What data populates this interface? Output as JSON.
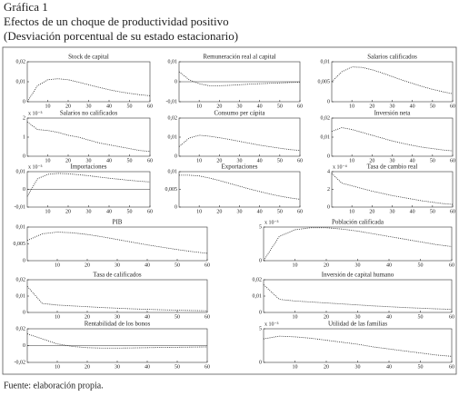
{
  "title": "Gráfica 1",
  "subtitle_lines": [
    "Efectos de un choque de productividad positivo",
    "(Desviación porcentual de su estado estacionario)"
  ],
  "source": "Fuente: elaboración propia.",
  "chart_data": [
    {
      "type": "line",
      "title": "Stock de capital",
      "x": [
        0,
        5,
        10,
        15,
        20,
        25,
        30,
        35,
        40,
        45,
        50,
        55,
        60
      ],
      "values": [
        0,
        0.008,
        0.011,
        0.0115,
        0.011,
        0.0098,
        0.0085,
        0.0072,
        0.006,
        0.005,
        0.0042,
        0.0035,
        0.003
      ],
      "xlim": [
        0,
        60
      ],
      "xticks": [
        10,
        20,
        30,
        40,
        50,
        60
      ],
      "ylim": [
        0,
        0.02
      ],
      "yticks": [
        0,
        {
          "value": 0.01,
          "label": "0,01"
        },
        {
          "value": 0.02,
          "label": "0,02"
        }
      ]
    },
    {
      "type": "line",
      "title": "Remuneración real al capital",
      "x": [
        0,
        5,
        10,
        15,
        20,
        25,
        30,
        35,
        40,
        45,
        50,
        55,
        60
      ],
      "values": [
        0.005,
        0.001,
        -0.001,
        -0.002,
        -0.002,
        -0.0018,
        -0.0015,
        -0.0012,
        -0.001,
        -0.0008,
        -0.0006,
        -0.0004,
        -0.0003
      ],
      "xlim": [
        0,
        60
      ],
      "xticks": [
        10,
        20,
        30,
        40,
        50,
        60
      ],
      "ylim": [
        -0.01,
        0.01
      ],
      "yticks": [
        {
          "value": -0.01,
          "label": "-0,01"
        },
        0,
        {
          "value": 0.01,
          "label": "0,01"
        }
      ]
    },
    {
      "type": "line",
      "title": "Salarios calificados",
      "x": [
        0,
        5,
        10,
        15,
        20,
        25,
        30,
        35,
        40,
        45,
        50,
        55,
        60
      ],
      "values": [
        0.005,
        0.0075,
        0.0087,
        0.0086,
        0.008,
        0.0072,
        0.0063,
        0.0054,
        0.0046,
        0.0038,
        0.0031,
        0.0025,
        0.002
      ],
      "xlim": [
        0,
        60
      ],
      "xticks": [
        10,
        20,
        30,
        40,
        50,
        60
      ],
      "ylim": [
        0,
        0.01
      ],
      "yticks": [
        0,
        {
          "value": 0.005,
          "label": "0,005"
        },
        {
          "value": 0.01,
          "label": "0,01"
        }
      ]
    },
    {
      "type": "line",
      "title": "Salarios no calificados",
      "exponent": "x 10⁻³",
      "x": [
        0,
        5,
        10,
        15,
        20,
        25,
        30,
        35,
        40,
        45,
        50,
        55,
        60
      ],
      "values": [
        1.8,
        1.4,
        1.35,
        1.25,
        1.1,
        1,
        0.85,
        0.7,
        0.6,
        0.5,
        0.4,
        0.3,
        0.25
      ],
      "xlim": [
        0,
        60
      ],
      "xticks": [
        10,
        20,
        30,
        40,
        50,
        60
      ],
      "ylim": [
        0,
        2
      ],
      "yticks": [
        0,
        1,
        2
      ]
    },
    {
      "type": "line",
      "title": "Consumo per cápita",
      "x": [
        0,
        5,
        10,
        15,
        20,
        25,
        30,
        35,
        40,
        45,
        50,
        55,
        60
      ],
      "values": [
        0.005,
        0.0095,
        0.011,
        0.0105,
        0.0097,
        0.0088,
        0.0078,
        0.0068,
        0.0058,
        0.005,
        0.0042,
        0.0035,
        0.003
      ],
      "xlim": [
        0,
        60
      ],
      "xticks": [
        10,
        20,
        30,
        40,
        50,
        60
      ],
      "ylim": [
        0,
        0.02
      ],
      "yticks": [
        0,
        {
          "value": 0.01,
          "label": "0,01"
        },
        {
          "value": 0.02,
          "label": "0,02"
        }
      ]
    },
    {
      "type": "line",
      "title": "Inversión neta",
      "x": [
        0,
        5,
        10,
        15,
        20,
        25,
        30,
        35,
        40,
        45,
        50,
        55,
        60
      ],
      "values": [
        0.013,
        0.015,
        0.014,
        0.0125,
        0.011,
        0.0095,
        0.008,
        0.0068,
        0.0057,
        0.0047,
        0.004,
        0.0033,
        0.0028
      ],
      "xlim": [
        0,
        60
      ],
      "xticks": [
        10,
        20,
        30,
        40,
        50,
        60
      ],
      "ylim": [
        0,
        0.02
      ],
      "yticks": [
        0,
        {
          "value": 0.01,
          "label": "0,01"
        },
        {
          "value": 0.02,
          "label": "0,02"
        }
      ]
    },
    {
      "type": "line",
      "title": "Importaciones",
      "exponent": "x 10⁻³",
      "x": [
        0,
        5,
        10,
        15,
        20,
        25,
        30,
        35,
        40,
        45,
        50,
        55,
        60
      ],
      "values": [
        -0.004,
        0.006,
        0.0085,
        0.009,
        0.0088,
        0.0083,
        0.0077,
        0.007,
        0.0063,
        0.0057,
        0.0051,
        0.0046,
        0.0042
      ],
      "xlim": [
        0,
        60
      ],
      "xticks": [
        10,
        20,
        30,
        40,
        50,
        60
      ],
      "ylim": [
        -0.01,
        0.01
      ],
      "yticks": [
        {
          "value": -0.01,
          "label": "-0,01"
        },
        0,
        {
          "value": 0.01,
          "label": "0,01"
        }
      ]
    },
    {
      "type": "line",
      "title": "Exportaciones",
      "x": [
        0,
        5,
        10,
        15,
        20,
        25,
        30,
        35,
        40,
        45,
        50,
        55,
        60
      ],
      "values": [
        0.009,
        0.009,
        0.0088,
        0.0082,
        0.0075,
        0.0067,
        0.0059,
        0.0051,
        0.0044,
        0.0037,
        0.0031,
        0.0026,
        0.0022
      ],
      "xlim": [
        0,
        60
      ],
      "xticks": [
        10,
        20,
        30,
        40,
        50,
        60
      ],
      "ylim": [
        0,
        0.01
      ],
      "yticks": [
        0,
        {
          "value": 0.005,
          "label": "0,005"
        },
        {
          "value": 0.01,
          "label": "0,01"
        }
      ]
    },
    {
      "type": "line",
      "title": "Tasa de cambio real",
      "exponent": "x 10⁻⁴",
      "x": [
        0,
        5,
        10,
        15,
        20,
        25,
        30,
        35,
        40,
        45,
        50,
        55,
        60
      ],
      "values": [
        3.8,
        2.7,
        2.4,
        2.1,
        1.8,
        1.55,
        1.3,
        1.1,
        0.9,
        0.7,
        0.55,
        0.4,
        0.3
      ],
      "xlim": [
        0,
        60
      ],
      "xticks": [
        10,
        20,
        30,
        40,
        50,
        60
      ],
      "ylim": [
        0,
        4
      ],
      "yticks": [
        0,
        2,
        4
      ]
    },
    {
      "type": "line",
      "title": "PIB",
      "x": [
        0,
        5,
        10,
        15,
        20,
        25,
        30,
        35,
        40,
        45,
        50,
        55,
        60
      ],
      "values": [
        0.006,
        0.008,
        0.0085,
        0.0083,
        0.0078,
        0.0071,
        0.0063,
        0.0055,
        0.0047,
        0.004,
        0.0033,
        0.0027,
        0.0022
      ],
      "xlim": [
        0,
        60
      ],
      "xticks": [
        10,
        20,
        30,
        40,
        50,
        60
      ],
      "ylim": [
        0,
        0.01
      ],
      "yticks": [
        0,
        {
          "value": 0.005,
          "label": "0,005"
        },
        {
          "value": 0.01,
          "label": "0,01"
        }
      ]
    },
    {
      "type": "line",
      "title": "Población calificada",
      "exponent": "x 10⁻³",
      "x": [
        0,
        5,
        10,
        15,
        20,
        25,
        30,
        35,
        40,
        45,
        50,
        55,
        60
      ],
      "values": [
        0,
        3.6,
        4.6,
        4.9,
        4.9,
        4.7,
        4.4,
        4,
        3.6,
        3.2,
        2.8,
        2.4,
        2.1
      ],
      "xlim": [
        0,
        60
      ],
      "xticks": [
        10,
        20,
        30,
        40,
        50,
        60
      ],
      "ylim": [
        0,
        5
      ],
      "yticks": [
        0,
        5
      ]
    },
    {
      "type": "line",
      "title": "Tasa de calificados",
      "x": [
        0,
        5,
        10,
        15,
        20,
        25,
        30,
        35,
        40,
        45,
        50,
        55,
        60
      ],
      "values": [
        0.016,
        0.0055,
        0.0045,
        0.004,
        0.0035,
        0.003,
        0.0026,
        0.0022,
        0.0019,
        0.0016,
        0.0014,
        0.0012,
        0.001
      ],
      "xlim": [
        0,
        60
      ],
      "xticks": [
        10,
        20,
        30,
        40,
        50,
        60
      ],
      "ylim": [
        0,
        0.02
      ],
      "yticks": [
        0,
        {
          "value": 0.01,
          "label": "0,01"
        },
        {
          "value": 0.02,
          "label": "0,02"
        }
      ]
    },
    {
      "type": "line",
      "title": "Inversión de capital humano",
      "x": [
        0,
        5,
        10,
        15,
        20,
        25,
        30,
        35,
        40,
        45,
        50,
        55,
        60
      ],
      "values": [
        0.017,
        0.008,
        0.007,
        0.0064,
        0.0058,
        0.0052,
        0.0046,
        0.004,
        0.0035,
        0.003,
        0.0026,
        0.0022,
        0.0019
      ],
      "xlim": [
        0,
        60
      ],
      "xticks": [
        10,
        20,
        30,
        40,
        50,
        60
      ],
      "ylim": [
        0,
        0.02
      ],
      "yticks": [
        0,
        {
          "value": 0.01,
          "label": "0,01"
        },
        {
          "value": 0.02,
          "label": "0,02"
        }
      ]
    },
    {
      "type": "line",
      "title": "Rentabilidad de los bonos",
      "x": [
        0,
        5,
        10,
        15,
        20,
        25,
        30,
        35,
        40,
        45,
        50,
        55,
        60
      ],
      "values": [
        0.014,
        0.008,
        0.002,
        -0.001,
        -0.0025,
        -0.003,
        -0.003,
        -0.0028,
        -0.0025,
        -0.0022,
        -0.002,
        -0.0018,
        -0.0016
      ],
      "xlim": [
        0,
        60
      ],
      "xticks": [
        10,
        20,
        30,
        40,
        50,
        60
      ],
      "ylim": [
        -0.02,
        0.02
      ],
      "yticks": [
        {
          "value": -0.02,
          "label": "-0,02"
        },
        0,
        {
          "value": 0.02,
          "label": "0,02"
        }
      ]
    },
    {
      "type": "line",
      "title": "Utilidad de las familias",
      "exponent": "x 10⁻³",
      "x": [
        0,
        5,
        10,
        15,
        20,
        25,
        30,
        35,
        40,
        45,
        50,
        55,
        60
      ],
      "values": [
        3.5,
        3.9,
        3.8,
        3.6,
        3.3,
        3,
        2.7,
        2.3,
        2,
        1.7,
        1.4,
        1.1,
        0.9
      ],
      "xlim": [
        0,
        60
      ],
      "xticks": [
        10,
        20,
        30,
        40,
        50,
        60
      ],
      "ylim": [
        0,
        5
      ],
      "yticks": [
        0,
        5
      ]
    }
  ]
}
